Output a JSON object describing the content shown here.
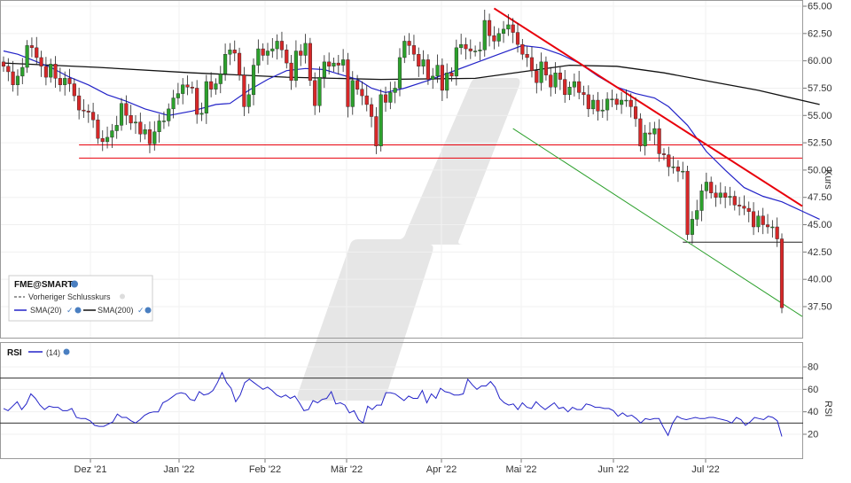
{
  "chart_data": {
    "type": "candlestick",
    "symbol": "FME@SMART",
    "legend": {
      "prev_close": "Vorheriger Schlusskurs",
      "sma20": "SMA(20)",
      "sma200": "SMA(200)",
      "placement": "bottom-left"
    },
    "price_axis": {
      "label": "Kurs",
      "ylim": [
        35.0,
        65.0
      ],
      "ticks": [
        "65.00",
        "62.50",
        "60.00",
        "57.50",
        "55.00",
        "52.50",
        "50.00",
        "47.50",
        "45.00",
        "42.50",
        "40.00",
        "37.50"
      ]
    },
    "x_axis": {
      "ticks": [
        "Dez '21",
        "Jan '22",
        "Feb '22",
        "Mär '22",
        "Apr '22",
        "Mai '22",
        "Jun '22",
        "Jul '22"
      ]
    },
    "closes": [
      59.5,
      59.0,
      57.8,
      58.6,
      59.4,
      61.4,
      61.2,
      60.3,
      59.5,
      58.5,
      59.7,
      58.4,
      57.8,
      58.4,
      57.9,
      56.8,
      55.5,
      55.4,
      55.3,
      54.6,
      52.9,
      52.6,
      53.0,
      53.6,
      54.1,
      56.1,
      55.0,
      54.3,
      54.4,
      53.3,
      53.7,
      52.4,
      53.5,
      54.5,
      54.5,
      55.6,
      56.6,
      57.0,
      57.8,
      57.6,
      57.5,
      55.1,
      55.2,
      58.1,
      57.4,
      57.9,
      58.8,
      60.6,
      61.0,
      60.7,
      58.7,
      55.8,
      56.9,
      59.6,
      61.1,
      60.5,
      60.9,
      61.1,
      61.8,
      61.0,
      59.8,
      58.2,
      60.9,
      60.5,
      61.6,
      58.2,
      55.9,
      58.5,
      59.9,
      59.5,
      59.8,
      59.6,
      60.1,
      55.8,
      58.2,
      57.4,
      56.8,
      56.0,
      54.9,
      52.2,
      56.9,
      56.2,
      57.1,
      57.5,
      60.3,
      61.8,
      61.4,
      60.6,
      59.5,
      60.1,
      58.3,
      58.6,
      59.6,
      57.3,
      58.9,
      58.6,
      61.2,
      61.5,
      61.1,
      60.9,
      60.9,
      61.0,
      63.7,
      62.3,
      61.8,
      62.5,
      62.9,
      63.3,
      62.6,
      61.5,
      60.6,
      60.3,
      59.1,
      58.0,
      59.9,
      58.7,
      57.6,
      58.9,
      58.3,
      56.9,
      57.6,
      58.1,
      57.1,
      56.9,
      55.6,
      56.4,
      55.4,
      55.5,
      56.5,
      56.5,
      56.0,
      56.4,
      56.4,
      55.8,
      54.7,
      52.2,
      53.4,
      53.3,
      53.8,
      51.5,
      51.4,
      50.3,
      50.3,
      49.9,
      49.9,
      44.1,
      45.5,
      46.3,
      48.1,
      48.9,
      47.9,
      47.5,
      47.9,
      47.5,
      47.6,
      46.8,
      46.7,
      46.5,
      46.2,
      44.8,
      45.8,
      45.0,
      44.8,
      44.8,
      43.7,
      37.4
    ],
    "bounds": {
      "lo": 37.4,
      "hi": 63.7
    },
    "sma20": [
      [
        0,
        60.9
      ],
      [
        3,
        60.6
      ],
      [
        6,
        60.1
      ],
      [
        10,
        59.4
      ],
      [
        14,
        58.5
      ],
      [
        18,
        57.8
      ],
      [
        22,
        56.9
      ],
      [
        26,
        56.3
      ],
      [
        30,
        55.6
      ],
      [
        35,
        55.0
      ],
      [
        40,
        55.4
      ],
      [
        45,
        56.0
      ],
      [
        48,
        56.1
      ],
      [
        52,
        57.3
      ],
      [
        56,
        58.3
      ],
      [
        60,
        59.1
      ],
      [
        64,
        59.3
      ],
      [
        68,
        59.2
      ],
      [
        71,
        58.8
      ],
      [
        75,
        58.3
      ],
      [
        78,
        57.5
      ],
      [
        81,
        57.1
      ],
      [
        85,
        57.5
      ],
      [
        90,
        58.2
      ],
      [
        95,
        59.0
      ],
      [
        100,
        59.8
      ],
      [
        105,
        60.6
      ],
      [
        110,
        61.4
      ],
      [
        114,
        61.2
      ],
      [
        118,
        60.6
      ],
      [
        122,
        59.8
      ],
      [
        126,
        58.6
      ],
      [
        130,
        57.6
      ],
      [
        134,
        57.0
      ],
      [
        138,
        56.6
      ],
      [
        141,
        55.8
      ],
      [
        145,
        54.1
      ],
      [
        149,
        51.7
      ],
      [
        153,
        50.0
      ],
      [
        157,
        48.4
      ],
      [
        161,
        47.6
      ],
      [
        165,
        47.1
      ],
      [
        170,
        46.1
      ],
      [
        173,
        45.5
      ]
    ],
    "sma200": [
      [
        0,
        59.8
      ],
      [
        20,
        59.4
      ],
      [
        40,
        58.9
      ],
      [
        60,
        58.5
      ],
      [
        80,
        58.3
      ],
      [
        100,
        58.4
      ],
      [
        110,
        59.0
      ],
      [
        120,
        59.6
      ],
      [
        130,
        59.5
      ],
      [
        140,
        58.9
      ],
      [
        150,
        58.1
      ],
      [
        160,
        57.3
      ],
      [
        173,
        56.0
      ]
    ],
    "support_lines": [
      {
        "level": 52.3,
        "from": 16,
        "to": 177,
        "color": "#e8000b"
      },
      {
        "level": 51.1,
        "from": 16,
        "to": 177,
        "color": "#e8000b"
      },
      {
        "level": 43.4,
        "from": 144,
        "to": 177,
        "color": "#222222"
      }
    ],
    "trend_lines": [
      {
        "from": [
          104,
          64.8
        ],
        "to": [
          177,
          46.7
        ],
        "color": "#e8000b",
        "width": 2
      },
      {
        "from": [
          108,
          53.8
        ],
        "to": [
          177,
          36.6
        ],
        "color": "#2ca02c",
        "width": 1
      }
    ],
    "rsi": {
      "label": "RSI",
      "period": "(14)",
      "ylim": [
        10,
        90
      ],
      "ticks": [
        "80",
        "60",
        "40",
        "20"
      ],
      "bands": [
        70,
        30
      ],
      "values": [
        43,
        41,
        45,
        49,
        42,
        47,
        56,
        52,
        46,
        42,
        45,
        44,
        44,
        41,
        41,
        43,
        35,
        34,
        34,
        32,
        28,
        27,
        27,
        29,
        31,
        38,
        35,
        35,
        32,
        30,
        33,
        37,
        39,
        40,
        40,
        48,
        50,
        53,
        56,
        57,
        56,
        51,
        50,
        58,
        55,
        56,
        59,
        66,
        75,
        66,
        61,
        49,
        55,
        66,
        69,
        66,
        63,
        60,
        62,
        59,
        55,
        53,
        55,
        52,
        54,
        48,
        41,
        42,
        50,
        48,
        51,
        52,
        58,
        47,
        48,
        46,
        39,
        41,
        33,
        30,
        45,
        42,
        46,
        46,
        57,
        57,
        56,
        53,
        50,
        54,
        52,
        52,
        59,
        48,
        56,
        52,
        61,
        58,
        57,
        55,
        55,
        56,
        69,
        64,
        60,
        63,
        63,
        67,
        62,
        52,
        48,
        46,
        47,
        42,
        48,
        44,
        43,
        49,
        45,
        42,
        45,
        48,
        43,
        44,
        40,
        44,
        42,
        42,
        47,
        46,
        44,
        44,
        43,
        43,
        41,
        36,
        39,
        36,
        37,
        34,
        30,
        34,
        33,
        34,
        34,
        26,
        19,
        30,
        36,
        34,
        33,
        34,
        35,
        34,
        34,
        35,
        35,
        34,
        33,
        32,
        30,
        35,
        33,
        28,
        31,
        35,
        34,
        33,
        36,
        35,
        32,
        18
      ]
    }
  }
}
